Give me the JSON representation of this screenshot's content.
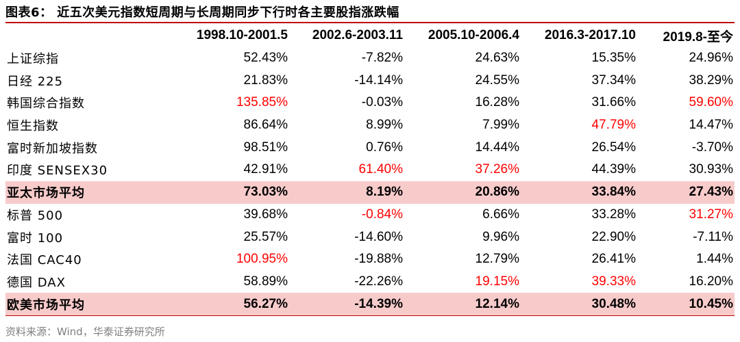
{
  "title": "图表6： 近五次美元指数短周期与长周期同步下行时各主要股指涨跌幅",
  "header": {
    "stub": "",
    "periods": [
      "1998.10-2001.5",
      "2002.6-2003.11",
      "2005.10-2006.4",
      "2016.3-2017.10",
      "2019.8-至今"
    ]
  },
  "rows": [
    {
      "name": "上证综指",
      "values": [
        "52.43%",
        "-7.82%",
        "24.63%",
        "15.35%",
        "24.96%"
      ],
      "highlight": [
        false,
        false,
        false,
        false,
        false
      ],
      "avg": false
    },
    {
      "name": "日经 225",
      "values": [
        "21.83%",
        "-14.14%",
        "24.55%",
        "37.34%",
        "38.29%"
      ],
      "highlight": [
        false,
        false,
        false,
        false,
        false
      ],
      "avg": false
    },
    {
      "name": "韩国综合指数",
      "values": [
        "135.85%",
        "-0.03%",
        "16.28%",
        "31.66%",
        "59.60%"
      ],
      "highlight": [
        true,
        false,
        false,
        false,
        true
      ],
      "avg": false
    },
    {
      "name": "恒生指数",
      "values": [
        "86.64%",
        "8.99%",
        "7.99%",
        "47.79%",
        "14.47%"
      ],
      "highlight": [
        false,
        false,
        false,
        true,
        false
      ],
      "avg": false
    },
    {
      "name": "富时新加坡指数",
      "values": [
        "98.51%",
        "0.76%",
        "14.44%",
        "26.54%",
        "-3.70%"
      ],
      "highlight": [
        false,
        false,
        false,
        false,
        false
      ],
      "avg": false
    },
    {
      "name": "印度 SENSEX30",
      "values": [
        "42.91%",
        "61.40%",
        "37.26%",
        "44.39%",
        "30.93%"
      ],
      "highlight": [
        false,
        true,
        true,
        false,
        false
      ],
      "avg": false
    },
    {
      "name": "亚太市场平均",
      "values": [
        "73.03%",
        "8.19%",
        "20.86%",
        "33.84%",
        "27.43%"
      ],
      "highlight": [
        false,
        false,
        false,
        false,
        false
      ],
      "avg": true
    },
    {
      "name": "标普 500",
      "values": [
        "39.68%",
        "-0.84%",
        "6.66%",
        "33.28%",
        "31.27%"
      ],
      "highlight": [
        false,
        true,
        false,
        false,
        true
      ],
      "avg": false
    },
    {
      "name": "富时 100",
      "values": [
        "25.57%",
        "-14.60%",
        "9.96%",
        "22.90%",
        "-7.11%"
      ],
      "highlight": [
        false,
        false,
        false,
        false,
        false
      ],
      "avg": false
    },
    {
      "name": "法国 CAC40",
      "values": [
        "100.95%",
        "-19.88%",
        "12.79%",
        "26.41%",
        "1.44%"
      ],
      "highlight": [
        true,
        false,
        false,
        false,
        false
      ],
      "avg": false
    },
    {
      "name": "德国 DAX",
      "values": [
        "58.89%",
        "-22.26%",
        "19.15%",
        "39.33%",
        "16.20%"
      ],
      "highlight": [
        false,
        false,
        true,
        true,
        false
      ],
      "avg": false
    },
    {
      "name": "欧美市场平均",
      "values": [
        "56.27%",
        "-14.39%",
        "12.14%",
        "30.48%",
        "10.45%"
      ],
      "highlight": [
        false,
        false,
        false,
        false,
        false
      ],
      "avg": true
    }
  ],
  "source": "资料来源：Wind，华泰证券研究所",
  "colors": {
    "accent_red": "#FF0000",
    "rule_red": "#C00000",
    "avg_row_bg": "#F8CBCB",
    "source_gray": "#7F7F7F"
  }
}
